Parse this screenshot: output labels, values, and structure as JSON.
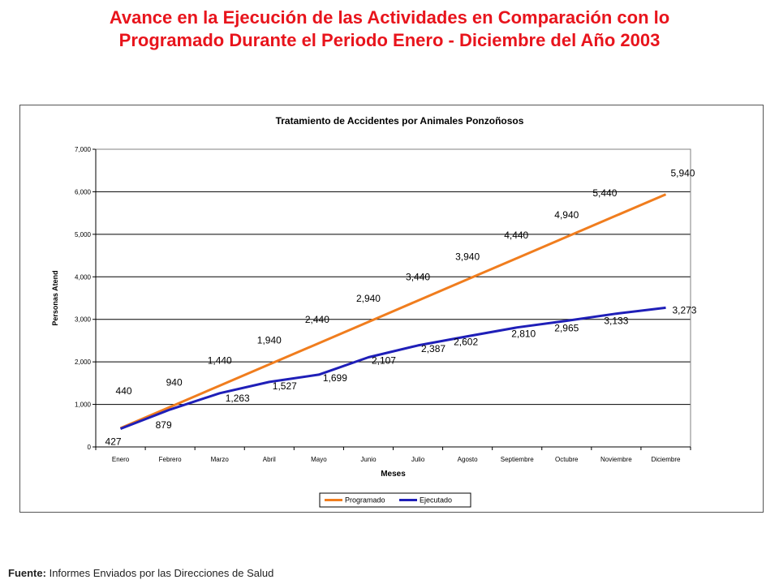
{
  "slide": {
    "title_line1": "Avance en la Ejecución de las Actividades en Comparación con lo",
    "title_line2": "Programado Durante el Periodo Enero - Diciembre del Año 2003",
    "source_label": "Fuente:",
    "source_text": "Informes Enviados por las Direcciones de Salud"
  },
  "chart_data": {
    "type": "line",
    "title": "Tratamiento de Accidentes por Animales Ponzoñosos",
    "xlabel": "Meses",
    "ylabel": "Personas Atend",
    "ylim": [
      0,
      7000
    ],
    "yticks": [
      0,
      1000,
      2000,
      3000,
      4000,
      5000,
      6000,
      7000
    ],
    "ytick_labels": [
      "0",
      "1,000",
      "2,000",
      "3,000",
      "4,000",
      "5,000",
      "6,000",
      "7,000"
    ],
    "grid": true,
    "legend_position": "bottom-center",
    "categories": [
      "Enero",
      "Febrero",
      "Marzo",
      "Abril",
      "Mayo",
      "Junio",
      "Julio",
      "Agosto",
      "Septiembre",
      "Octubre",
      "Noviembre",
      "Diciembre"
    ],
    "series": [
      {
        "name": "Programado",
        "color": "#f07d1e",
        "values": [
          440,
          940,
          1440,
          1940,
          2440,
          2940,
          3440,
          3940,
          4440,
          4940,
          5440,
          5940
        ],
        "labels": [
          "440",
          "940",
          "1,440",
          "1,940",
          "2,440",
          "2,940",
          "3,440",
          "3,940",
          "4,440",
          "4,940",
          "5,440",
          "5,940"
        ]
      },
      {
        "name": "Ejecutado",
        "color": "#1f1fb8",
        "values": [
          427,
          879,
          1263,
          1527,
          1699,
          2107,
          2387,
          2602,
          2810,
          2965,
          3133,
          3273
        ],
        "labels": [
          "427",
          "879",
          "1,263",
          "1,527",
          "1,699",
          "2,107",
          "2,387",
          "2,602",
          "2,810",
          "2,965",
          "3,133",
          "3,273"
        ]
      }
    ]
  }
}
